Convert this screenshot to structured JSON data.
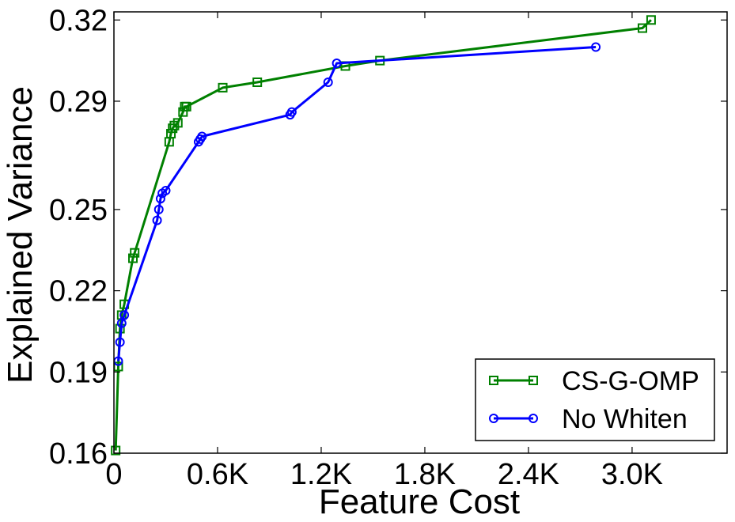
{
  "chart_data": {
    "type": "line",
    "title": "",
    "xlabel": "Feature Cost",
    "ylabel": "Explained Variance",
    "xlim": [
      0,
      3550
    ],
    "ylim": [
      0.16,
      0.323
    ],
    "x_ticks": [
      0,
      600,
      1200,
      1800,
      2400,
      3000
    ],
    "x_tick_labels": [
      "0",
      "0.6K",
      "1.2K",
      "1.8K",
      "2.4K",
      "3.0K"
    ],
    "y_ticks": [
      0.16,
      0.19,
      0.22,
      0.25,
      0.29,
      0.32
    ],
    "y_tick_labels": [
      "0.16",
      "0.19",
      "0.22",
      "0.25",
      "0.29",
      "0.32"
    ],
    "grid": false,
    "legend_position": "lower-right",
    "series": [
      {
        "name": "CS-G-OMP",
        "color": "#008000",
        "marker": "square",
        "x": [
          10,
          25,
          35,
          45,
          60,
          110,
          120,
          320,
          330,
          340,
          350,
          370,
          400,
          410,
          420,
          630,
          830,
          1340,
          1540,
          3060,
          3110
        ],
        "y": [
          0.161,
          0.192,
          0.206,
          0.211,
          0.215,
          0.232,
          0.234,
          0.275,
          0.278,
          0.28,
          0.281,
          0.282,
          0.286,
          0.288,
          0.288,
          0.295,
          0.297,
          0.303,
          0.305,
          0.317,
          0.32
        ]
      },
      {
        "name": "No Whiten",
        "color": "#0000ff",
        "marker": "circle",
        "x": [
          25,
          35,
          45,
          60,
          250,
          260,
          270,
          280,
          300,
          490,
          500,
          510,
          1020,
          1030,
          1240,
          1290,
          2790
        ],
        "y": [
          0.194,
          0.201,
          0.208,
          0.211,
          0.246,
          0.25,
          0.254,
          0.256,
          0.257,
          0.275,
          0.276,
          0.277,
          0.285,
          0.286,
          0.297,
          0.304,
          0.31
        ]
      }
    ]
  }
}
